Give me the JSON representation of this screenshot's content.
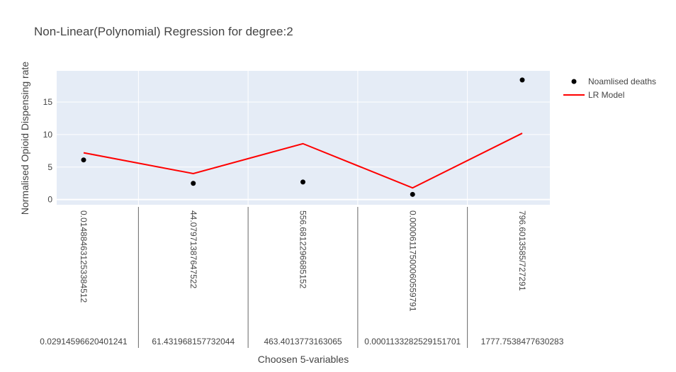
{
  "chart_data": {
    "type": "line",
    "title": "Non-Linear(Polynomial) Regression for degree:2",
    "xlabel": "Choosen 5-variables",
    "ylabel": "Normalised Opioid Dispensing rate",
    "categories": [
      {
        "rotated": "0.014884631253384512",
        "bottom": "0.02914596620401241"
      },
      {
        "rotated": "44.07971387647522",
        "bottom": "61.431968157732044"
      },
      {
        "rotated": "556.6812296685152",
        "bottom": "463.4013773163065"
      },
      {
        "rotated": "0.00006117500060559791",
        "bottom": "0.0001133282529151701"
      },
      {
        "rotated": "796.6013585/727291",
        "bottom": "1777.7538477630283"
      }
    ],
    "series": [
      {
        "name": "Noamlised deaths",
        "mode": "markers",
        "color": "#000000",
        "values": [
          6.1,
          2.5,
          2.7,
          0.8,
          18.4
        ]
      },
      {
        "name": "LR Model",
        "mode": "lines",
        "color": "#ff0000",
        "values": [
          7.2,
          4.0,
          8.6,
          1.8,
          10.2
        ]
      }
    ],
    "ylim": [
      -0.8,
      19.8
    ],
    "yticks": [
      0,
      5,
      10,
      15
    ],
    "grid": true,
    "legend_position": "top-right"
  }
}
